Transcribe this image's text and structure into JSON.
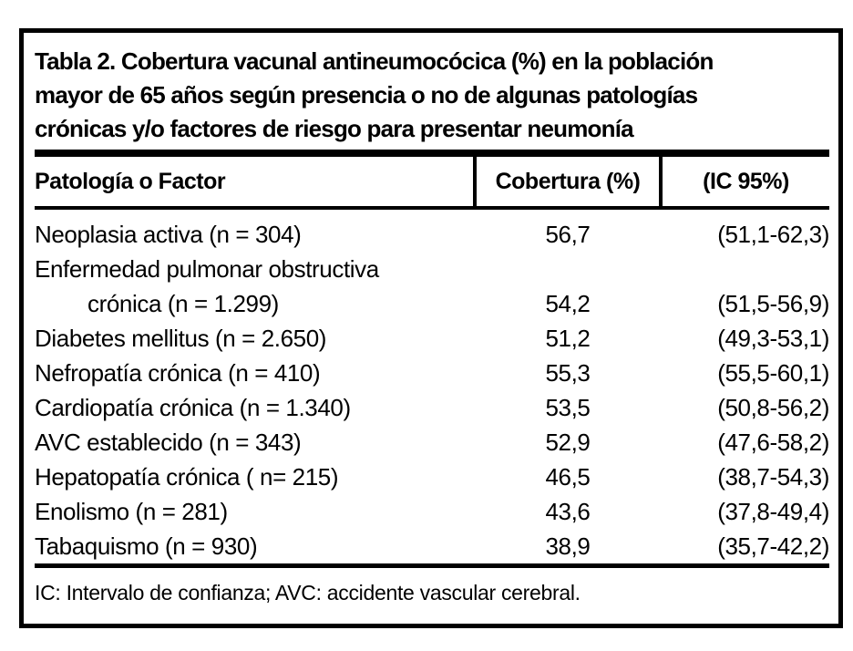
{
  "document": {
    "title_lines": [
      "Tabla 2. Cobertura vacunal antineumocócica (%) en la población",
      "mayor de 65 años según presencia o no de algunas patologías",
      "crónicas y/o factores de riesgo para presentar neumonía"
    ],
    "table": {
      "headers": {
        "patologia": "Patología o Factor",
        "cobertura": "Cobertura (%)",
        "ic": "(IC 95%)"
      },
      "rows": [
        {
          "label": "Neoplasia activa (n = 304)",
          "cobertura": "56,7",
          "ic": "(51,1-62,3)"
        },
        {
          "label": "Enfermedad pulmonar obstructiva",
          "cobertura": "",
          "ic": ""
        },
        {
          "label": "crónica (n = 1.299)",
          "cobertura": "54,2",
          "ic": "(51,5-56,9)"
        },
        {
          "label": "Diabetes mellitus (n = 2.650)",
          "cobertura": "51,2",
          "ic": "(49,3-53,1)"
        },
        {
          "label": "Nefropatía crónica (n = 410)",
          "cobertura": "55,3",
          "ic": "(55,5-60,1)"
        },
        {
          "label": "Cardiopatía crónica (n = 1.340)",
          "cobertura": "53,5",
          "ic": "(50,8-56,2)"
        },
        {
          "label": "AVC establecido (n = 343)",
          "cobertura": "52,9",
          "ic": "(47,6-58,2)"
        },
        {
          "label": "Hepatopatía crónica ( n= 215)",
          "cobertura": "46,5",
          "ic": "(38,7-54,3)"
        },
        {
          "label": "Enolismo (n = 281)",
          "cobertura": "43,6",
          "ic": "(37,8-49,4)"
        },
        {
          "label": "Tabaquismo (n = 930)",
          "cobertura": "38,9",
          "ic": "(35,7-42,2)"
        }
      ],
      "footnote": "IC: Intervalo de confianza; AVC: accidente vascular cerebral."
    },
    "colors": {
      "border": "#000000",
      "text": "#000000",
      "background": "#ffffff"
    }
  },
  "chart_data": {
    "type": "table",
    "title": "Tabla 2. Cobertura vacunal antineumocócica (%) en la población mayor de 65 años según presencia o no de algunas patologías crónicas y/o factores de riesgo para presentar neumonía",
    "columns": [
      "Patología o Factor",
      "Cobertura (%)",
      "(IC 95%)"
    ],
    "rows": [
      {
        "patologia": "Neoplasia activa",
        "n": 304,
        "cobertura_pct": 56.7,
        "ic95": "51,1-62,3"
      },
      {
        "patologia": "Enfermedad pulmonar obstructiva crónica",
        "n": 1299,
        "cobertura_pct": 54.2,
        "ic95": "51,5-56,9"
      },
      {
        "patologia": "Diabetes mellitus",
        "n": 2650,
        "cobertura_pct": 51.2,
        "ic95": "49,3-53,1"
      },
      {
        "patologia": "Nefropatía crónica",
        "n": 410,
        "cobertura_pct": 55.3,
        "ic95": "55,5-60,1"
      },
      {
        "patologia": "Cardiopatía crónica",
        "n": 1340,
        "cobertura_pct": 53.5,
        "ic95": "50,8-56,2"
      },
      {
        "patologia": "AVC establecido",
        "n": 343,
        "cobertura_pct": 52.9,
        "ic95": "47,6-58,2"
      },
      {
        "patologia": "Hepatopatía crónica",
        "n": 215,
        "cobertura_pct": 46.5,
        "ic95": "38,7-54,3"
      },
      {
        "patologia": "Enolismo",
        "n": 281,
        "cobertura_pct": 43.6,
        "ic95": "37,8-49,4"
      },
      {
        "patologia": "Tabaquismo",
        "n": 930,
        "cobertura_pct": 38.9,
        "ic95": "35,7-42,2"
      }
    ],
    "footnote": "IC: Intervalo de confianza; AVC: accidente vascular cerebral."
  }
}
